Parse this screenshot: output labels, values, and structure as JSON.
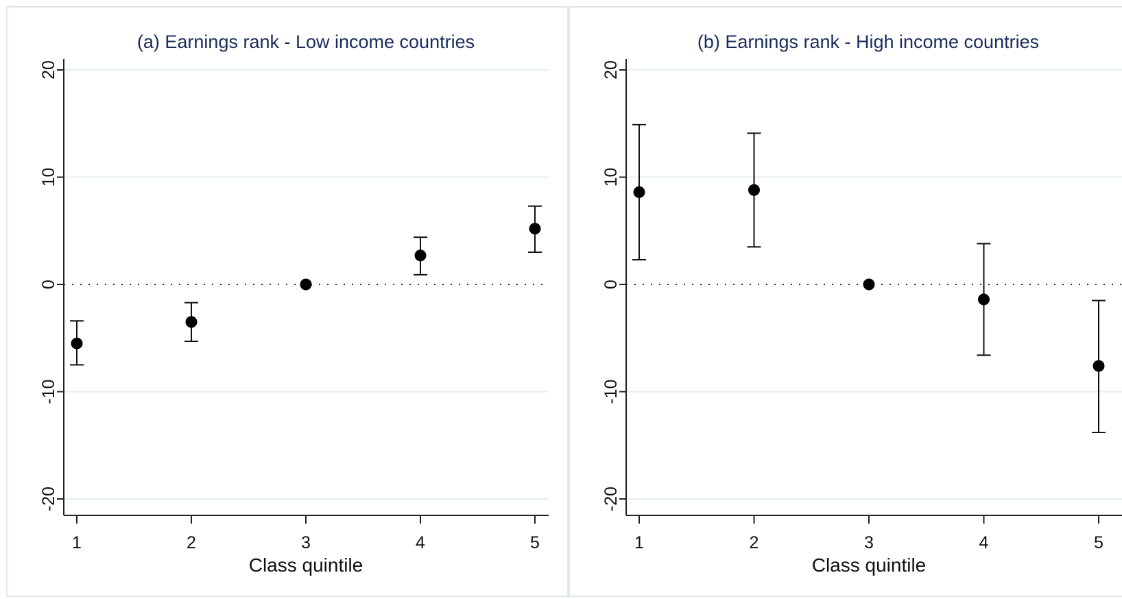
{
  "chart_data": [
    {
      "type": "scatter",
      "title": "(a) Earnings rank - Low income countries",
      "xlabel": "Class quintile",
      "ylabel": "",
      "x": [
        1,
        2,
        3,
        4,
        5
      ],
      "xticks": [
        "1",
        "2",
        "3",
        "4",
        "5"
      ],
      "yticks": [
        "-20",
        "-10",
        "0",
        "10",
        "20"
      ],
      "ylim": [
        -21.5,
        21
      ],
      "grid": true,
      "reference_line": 0,
      "series": [
        {
          "estimate": [
            -5.5,
            -3.5,
            0,
            2.7,
            5.2
          ],
          "ci_low": [
            -7.5,
            -5.3,
            0,
            0.9,
            3.0
          ],
          "ci_high": [
            -3.4,
            -1.7,
            0,
            4.4,
            7.3
          ]
        }
      ]
    },
    {
      "type": "scatter",
      "title": "(b) Earnings rank - High income countries",
      "xlabel": "Class quintile",
      "ylabel": "",
      "x": [
        1,
        2,
        3,
        4,
        5
      ],
      "xticks": [
        "1",
        "2",
        "3",
        "4",
        "5"
      ],
      "yticks": [
        "-20",
        "-10",
        "0",
        "10",
        "20"
      ],
      "ylim": [
        -21.5,
        21
      ],
      "grid": true,
      "reference_line": 0,
      "series": [
        {
          "estimate": [
            8.6,
            8.8,
            0,
            -1.4,
            -7.6
          ],
          "ci_low": [
            2.3,
            3.5,
            0,
            -6.6,
            -13.8
          ],
          "ci_high": [
            14.9,
            14.1,
            0,
            3.8,
            -1.5
          ]
        }
      ]
    }
  ]
}
